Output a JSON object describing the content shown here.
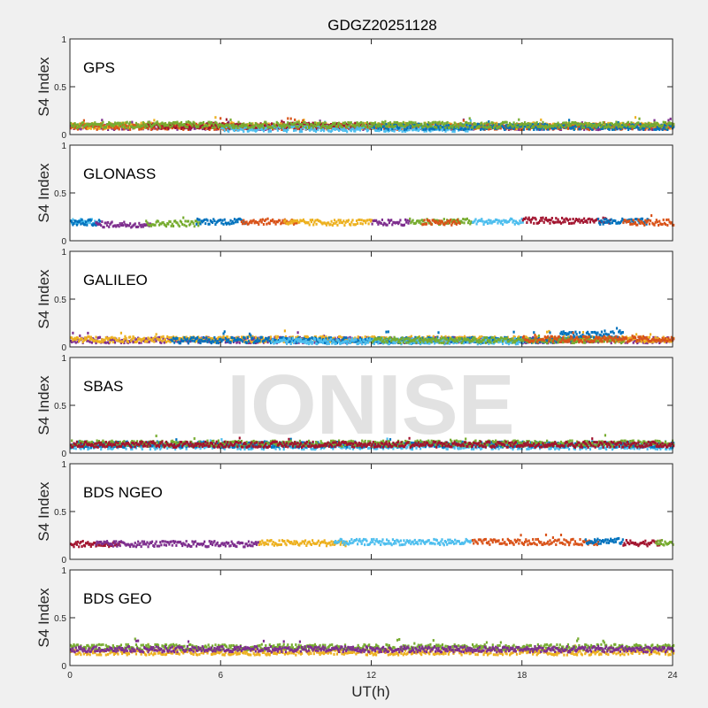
{
  "chart_data": {
    "type": "scatter",
    "title": "GDGZ20251128",
    "xlabel": "UT(h)",
    "ylabel": "S4 Index",
    "xlim": [
      0,
      24
    ],
    "ylim": [
      0,
      1
    ],
    "xticks": [
      "0",
      "6",
      "12",
      "18",
      "24"
    ],
    "yticks": [
      "0",
      "0.5",
      "1"
    ],
    "watermark": "IONISE",
    "colors": [
      "#0072BD",
      "#D95319",
      "#EDB120",
      "#7E2F8E",
      "#77AC30",
      "#4DBEEE",
      "#A2142F"
    ],
    "panels": [
      {
        "name": "GPS",
        "segments": [
          {
            "color": 3,
            "t": [
              0,
              24
            ],
            "s4": 0.08
          },
          {
            "color": 2,
            "t": [
              0,
              24
            ],
            "s4": 0.09
          },
          {
            "color": 1,
            "t": [
              0,
              24
            ],
            "s4": 0.08
          },
          {
            "color": 6,
            "t": [
              3,
              12
            ],
            "s4": 0.09
          },
          {
            "color": 5,
            "t": [
              6,
              16
            ],
            "s4": 0.06
          },
          {
            "color": 0,
            "t": [
              12,
              24
            ],
            "s4": 0.08
          },
          {
            "color": 4,
            "t": [
              0,
              24
            ],
            "s4": 0.1
          }
        ]
      },
      {
        "name": "GLONASS",
        "segments": [
          {
            "color": 5,
            "t": [
              0,
              1
            ],
            "s4": 0.2
          },
          {
            "color": 0,
            "t": [
              0,
              1.2
            ],
            "s4": 0.19
          },
          {
            "color": 3,
            "t": [
              1,
              3.2
            ],
            "s4": 0.17
          },
          {
            "color": 4,
            "t": [
              3,
              5.2
            ],
            "s4": 0.18
          },
          {
            "color": 0,
            "t": [
              5,
              7
            ],
            "s4": 0.2
          },
          {
            "color": 1,
            "t": [
              6.8,
              9
            ],
            "s4": 0.2
          },
          {
            "color": 2,
            "t": [
              8.5,
              12
            ],
            "s4": 0.19
          },
          {
            "color": 3,
            "t": [
              12,
              13.5
            ],
            "s4": 0.19
          },
          {
            "color": 4,
            "t": [
              13.5,
              16
            ],
            "s4": 0.2
          },
          {
            "color": 1,
            "t": [
              14,
              15.5
            ],
            "s4": 0.19
          },
          {
            "color": 5,
            "t": [
              16,
              18
            ],
            "s4": 0.2
          },
          {
            "color": 6,
            "t": [
              18,
              21.5
            ],
            "s4": 0.21
          },
          {
            "color": 0,
            "t": [
              21,
              23
            ],
            "s4": 0.2
          },
          {
            "color": 1,
            "t": [
              22,
              24
            ],
            "s4": 0.19
          }
        ]
      },
      {
        "name": "GALILEO",
        "segments": [
          {
            "color": 3,
            "t": [
              0,
              24
            ],
            "s4": 0.07
          },
          {
            "color": 2,
            "t": [
              0,
              24
            ],
            "s4": 0.08
          },
          {
            "color": 0,
            "t": [
              4,
              20
            ],
            "s4": 0.07
          },
          {
            "color": 5,
            "t": [
              8,
              18
            ],
            "s4": 0.06
          },
          {
            "color": 4,
            "t": [
              12,
              22
            ],
            "s4": 0.07
          },
          {
            "color": 0,
            "t": [
              19.5,
              22
            ],
            "s4": 0.13
          },
          {
            "color": 1,
            "t": [
              18,
              24
            ],
            "s4": 0.08
          }
        ]
      },
      {
        "name": "SBAS",
        "segments": [
          {
            "color": 5,
            "t": [
              0,
              24
            ],
            "s4": 0.07
          },
          {
            "color": 0,
            "t": [
              0,
              24
            ],
            "s4": 0.09
          },
          {
            "color": 4,
            "t": [
              0,
              24
            ],
            "s4": 0.1
          },
          {
            "color": 6,
            "t": [
              0,
              24
            ],
            "s4": 0.09
          }
        ]
      },
      {
        "name": "BDS NGEO",
        "segments": [
          {
            "color": 6,
            "t": [
              0,
              2
            ],
            "s4": 0.16
          },
          {
            "color": 3,
            "t": [
              1,
              7.5
            ],
            "s4": 0.16
          },
          {
            "color": 2,
            "t": [
              7.5,
              11
            ],
            "s4": 0.17
          },
          {
            "color": 5,
            "t": [
              10.5,
              16
            ],
            "s4": 0.18
          },
          {
            "color": 1,
            "t": [
              16,
              21
            ],
            "s4": 0.18
          },
          {
            "color": 0,
            "t": [
              20.5,
              22
            ],
            "s4": 0.19
          },
          {
            "color": 6,
            "t": [
              22,
              23.5
            ],
            "s4": 0.17
          },
          {
            "color": 4,
            "t": [
              23.3,
              24
            ],
            "s4": 0.17
          }
        ]
      },
      {
        "name": "BDS GEO",
        "segments": [
          {
            "color": 2,
            "t": [
              0,
              24
            ],
            "s4": 0.14
          },
          {
            "color": 4,
            "t": [
              0,
              24
            ],
            "s4": 0.19
          },
          {
            "color": 3,
            "t": [
              0,
              24
            ],
            "s4": 0.17
          }
        ]
      }
    ]
  }
}
